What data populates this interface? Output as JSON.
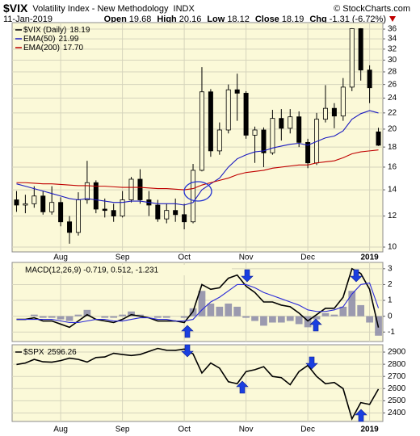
{
  "header": {
    "symbol": "$VIX",
    "name": "Volatility Index - New Methodology",
    "exchange": "INDX",
    "source": "© StockCharts.com",
    "date": "11-Jan-2019",
    "quote": [
      {
        "label": "Open",
        "value": 19.68
      },
      {
        "label": "High",
        "value": 20.16
      },
      {
        "label": "Low",
        "value": 18.12
      },
      {
        "label": "Close",
        "value": 18.19
      },
      {
        "label": "Chg",
        "value": -1.31
      }
    ],
    "change_pct": {
      "value": -6.72,
      "label": "(-6.72%)"
    }
  },
  "chart_data": [
    {
      "type": "candlestick",
      "log": true,
      "grid": true,
      "background": "#fbf9d8",
      "categories": [
        null,
        null,
        null,
        null,
        null,
        "Aug",
        null,
        null,
        null,
        null,
        null,
        null,
        "Sep",
        null,
        null,
        null,
        null,
        null,
        null,
        "Oct",
        null,
        null,
        null,
        null,
        null,
        null,
        "Nov",
        null,
        null,
        null,
        null,
        null,
        null,
        "Dec",
        null,
        null,
        null,
        null,
        null,
        null,
        "2019",
        null
      ],
      "ylim": [
        9.72,
        37.4
      ],
      "yticks": [
        10,
        12,
        14,
        16,
        18,
        20,
        22,
        24,
        26,
        28,
        30,
        32,
        34,
        36
      ],
      "series": [
        {
          "name": "$VIX (Daily)",
          "color": "#000000",
          "open": [
            13.2,
            12.8,
            12.9,
            13.5,
            12.3,
            13.0,
            11.6,
            10.9,
            13.2,
            14.6,
            12.5,
            12.4,
            12.0,
            13.2,
            14.9,
            13.2,
            12.8,
            11.8,
            12.4,
            12.1,
            11.6,
            15.7,
            24.9,
            17.6,
            19.9,
            25.2,
            24.7,
            19.3,
            19.9,
            17.4,
            21.3,
            20.1,
            21.5,
            18.5,
            16.4,
            21.2,
            22.6,
            21.6,
            25.6,
            36.1,
            28.3,
            19.68
          ],
          "high": [
            13.9,
            13.6,
            14.3,
            13.9,
            14.3,
            13.4,
            12.0,
            13.8,
            16.6,
            14.8,
            13.3,
            12.9,
            13.9,
            15.1,
            15.8,
            13.9,
            13.2,
            12.9,
            13.3,
            12.9,
            16.3,
            28.8,
            25.3,
            20.8,
            26.0,
            27.7,
            25.0,
            20.3,
            20.2,
            22.4,
            22.5,
            22.5,
            22.2,
            18.9,
            22.0,
            25.9,
            23.3,
            27.0,
            36.2,
            36.2,
            29.1,
            20.16
          ],
          "low": [
            12.3,
            12.2,
            12.6,
            12.1,
            12.1,
            11.3,
            10.2,
            10.7,
            12.9,
            12.2,
            11.9,
            11.6,
            11.9,
            13.0,
            12.9,
            12.0,
            11.6,
            11.5,
            11.6,
            11.1,
            11.5,
            15.6,
            17.0,
            17.2,
            19.5,
            21.0,
            18.9,
            16.4,
            16.0,
            17.2,
            18.7,
            19.5,
            18.0,
            15.9,
            16.2,
            20.8,
            20.1,
            21.0,
            25.0,
            26.6,
            23.3,
            18.12
          ],
          "close": [
            12.8,
            12.9,
            13.5,
            12.3,
            13.0,
            11.6,
            10.9,
            13.2,
            14.6,
            12.5,
            12.4,
            12.0,
            13.2,
            14.9,
            13.2,
            12.8,
            11.8,
            12.4,
            12.1,
            11.6,
            15.7,
            24.9,
            17.6,
            19.9,
            25.2,
            24.7,
            19.3,
            19.9,
            17.4,
            21.3,
            20.1,
            21.5,
            18.5,
            16.4,
            21.2,
            22.6,
            21.6,
            25.6,
            36.1,
            28.3,
            25.5,
            18.19
          ]
        },
        {
          "name": "EMA(50)",
          "color": "#1a1ac0",
          "values": [
            14.5,
            14.3,
            14.1,
            13.9,
            13.7,
            13.5,
            13.3,
            13.2,
            13.3,
            13.2,
            13.1,
            13.0,
            13.0,
            13.1,
            13.1,
            13.0,
            12.9,
            12.9,
            12.9,
            12.8,
            13.0,
            14.0,
            14.5,
            15.0,
            16.0,
            16.8,
            17.2,
            17.5,
            17.6,
            17.9,
            18.1,
            18.3,
            18.4,
            18.2,
            18.6,
            19.0,
            19.2,
            19.8,
            21.2,
            21.9,
            22.3,
            21.99
          ]
        },
        {
          "name": "EMA(200)",
          "color": "#c00000",
          "legend_value": {
            "value": 17.7,
            "label": "17.70"
          },
          "values": [
            14.6,
            14.6,
            14.55,
            14.5,
            14.5,
            14.45,
            14.4,
            14.35,
            14.35,
            14.3,
            14.3,
            14.25,
            14.2,
            14.2,
            14.2,
            14.15,
            14.1,
            14.1,
            14.05,
            14.0,
            14.1,
            14.4,
            14.6,
            14.8,
            15.0,
            15.3,
            15.5,
            15.6,
            15.7,
            15.9,
            16.0,
            16.1,
            16.2,
            16.2,
            16.4,
            16.5,
            16.6,
            16.9,
            17.3,
            17.5,
            17.6,
            17.7
          ]
        }
      ]
    },
    {
      "type": "line",
      "grid": true,
      "background": "#fbf9d8",
      "legend": "MACD(12,26,9) -0.719, 0.512, -1.231",
      "ylim": [
        -1.6,
        3.4
      ],
      "yticks": [
        -1,
        0,
        1,
        2,
        3
      ],
      "series": [
        {
          "name": "MACD",
          "color": "#000000",
          "values": [
            -0.2,
            -0.2,
            -0.1,
            -0.3,
            -0.3,
            -0.5,
            -0.7,
            -0.3,
            0.1,
            -0.2,
            -0.3,
            -0.4,
            -0.2,
            0.1,
            0.0,
            -0.1,
            -0.3,
            -0.3,
            -0.3,
            -0.4,
            0.3,
            2.0,
            1.7,
            1.8,
            2.4,
            2.6,
            1.9,
            1.5,
            0.9,
            0.9,
            0.7,
            0.6,
            0.2,
            -0.3,
            0.1,
            0.5,
            0.5,
            1.2,
            3.0,
            2.7,
            1.7,
            -0.719
          ]
        },
        {
          "name": "Signal",
          "color": "#2a2ad8",
          "values": [
            -0.2,
            -0.2,
            -0.2,
            -0.2,
            -0.2,
            -0.3,
            -0.4,
            -0.4,
            -0.3,
            -0.2,
            -0.2,
            -0.3,
            -0.3,
            -0.2,
            -0.1,
            -0.1,
            -0.2,
            -0.2,
            -0.3,
            -0.3,
            -0.2,
            0.4,
            0.9,
            1.2,
            1.6,
            2.0,
            2.0,
            1.8,
            1.5,
            1.3,
            1.1,
            0.9,
            0.7,
            0.4,
            0.3,
            0.3,
            0.4,
            0.6,
            1.4,
            2.0,
            2.1,
            0.512
          ]
        },
        {
          "name": "Histogram",
          "color": "#8a8aa8",
          "style": "bar",
          "values": [
            0,
            0,
            0.1,
            -0.1,
            -0.1,
            -0.2,
            -0.3,
            0.1,
            0.4,
            0,
            -0.1,
            -0.1,
            0.1,
            0.3,
            0.1,
            0,
            -0.1,
            -0.1,
            0,
            -0.1,
            0.5,
            1.6,
            0.8,
            0.6,
            0.8,
            0.6,
            -0.1,
            -0.3,
            -0.6,
            -0.4,
            -0.4,
            -0.3,
            -0.5,
            -0.7,
            -0.2,
            0.2,
            0.1,
            0.6,
            1.6,
            0.7,
            -0.4,
            -1.231
          ]
        }
      ]
    },
    {
      "type": "line",
      "grid": true,
      "background": "#fbf9d8",
      "categories": [
        null,
        null,
        null,
        null,
        null,
        "Aug",
        null,
        null,
        null,
        null,
        null,
        null,
        "Sep",
        null,
        null,
        null,
        null,
        null,
        null,
        "Oct",
        null,
        null,
        null,
        null,
        null,
        null,
        "Nov",
        null,
        null,
        null,
        null,
        null,
        null,
        "Dec",
        null,
        null,
        null,
        null,
        null,
        null,
        "2019",
        null
      ],
      "ylim": [
        2330,
        2960
      ],
      "yticks": [
        2400,
        2500,
        2600,
        2700,
        2800,
        2900
      ],
      "series": [
        {
          "name": "$SPX",
          "color": "#000000",
          "values": [
            2798,
            2810,
            2840,
            2820,
            2817,
            2830,
            2850,
            2840,
            2818,
            2855,
            2860,
            2890,
            2880,
            2872,
            2880,
            2905,
            2930,
            2915,
            2914,
            2925,
            2885,
            2728,
            2810,
            2768,
            2656,
            2640,
            2740,
            2755,
            2780,
            2700,
            2690,
            2632,
            2740,
            2790,
            2700,
            2640,
            2650,
            2600,
            2351,
            2485,
            2470,
            2596.26
          ]
        }
      ]
    }
  ]
}
